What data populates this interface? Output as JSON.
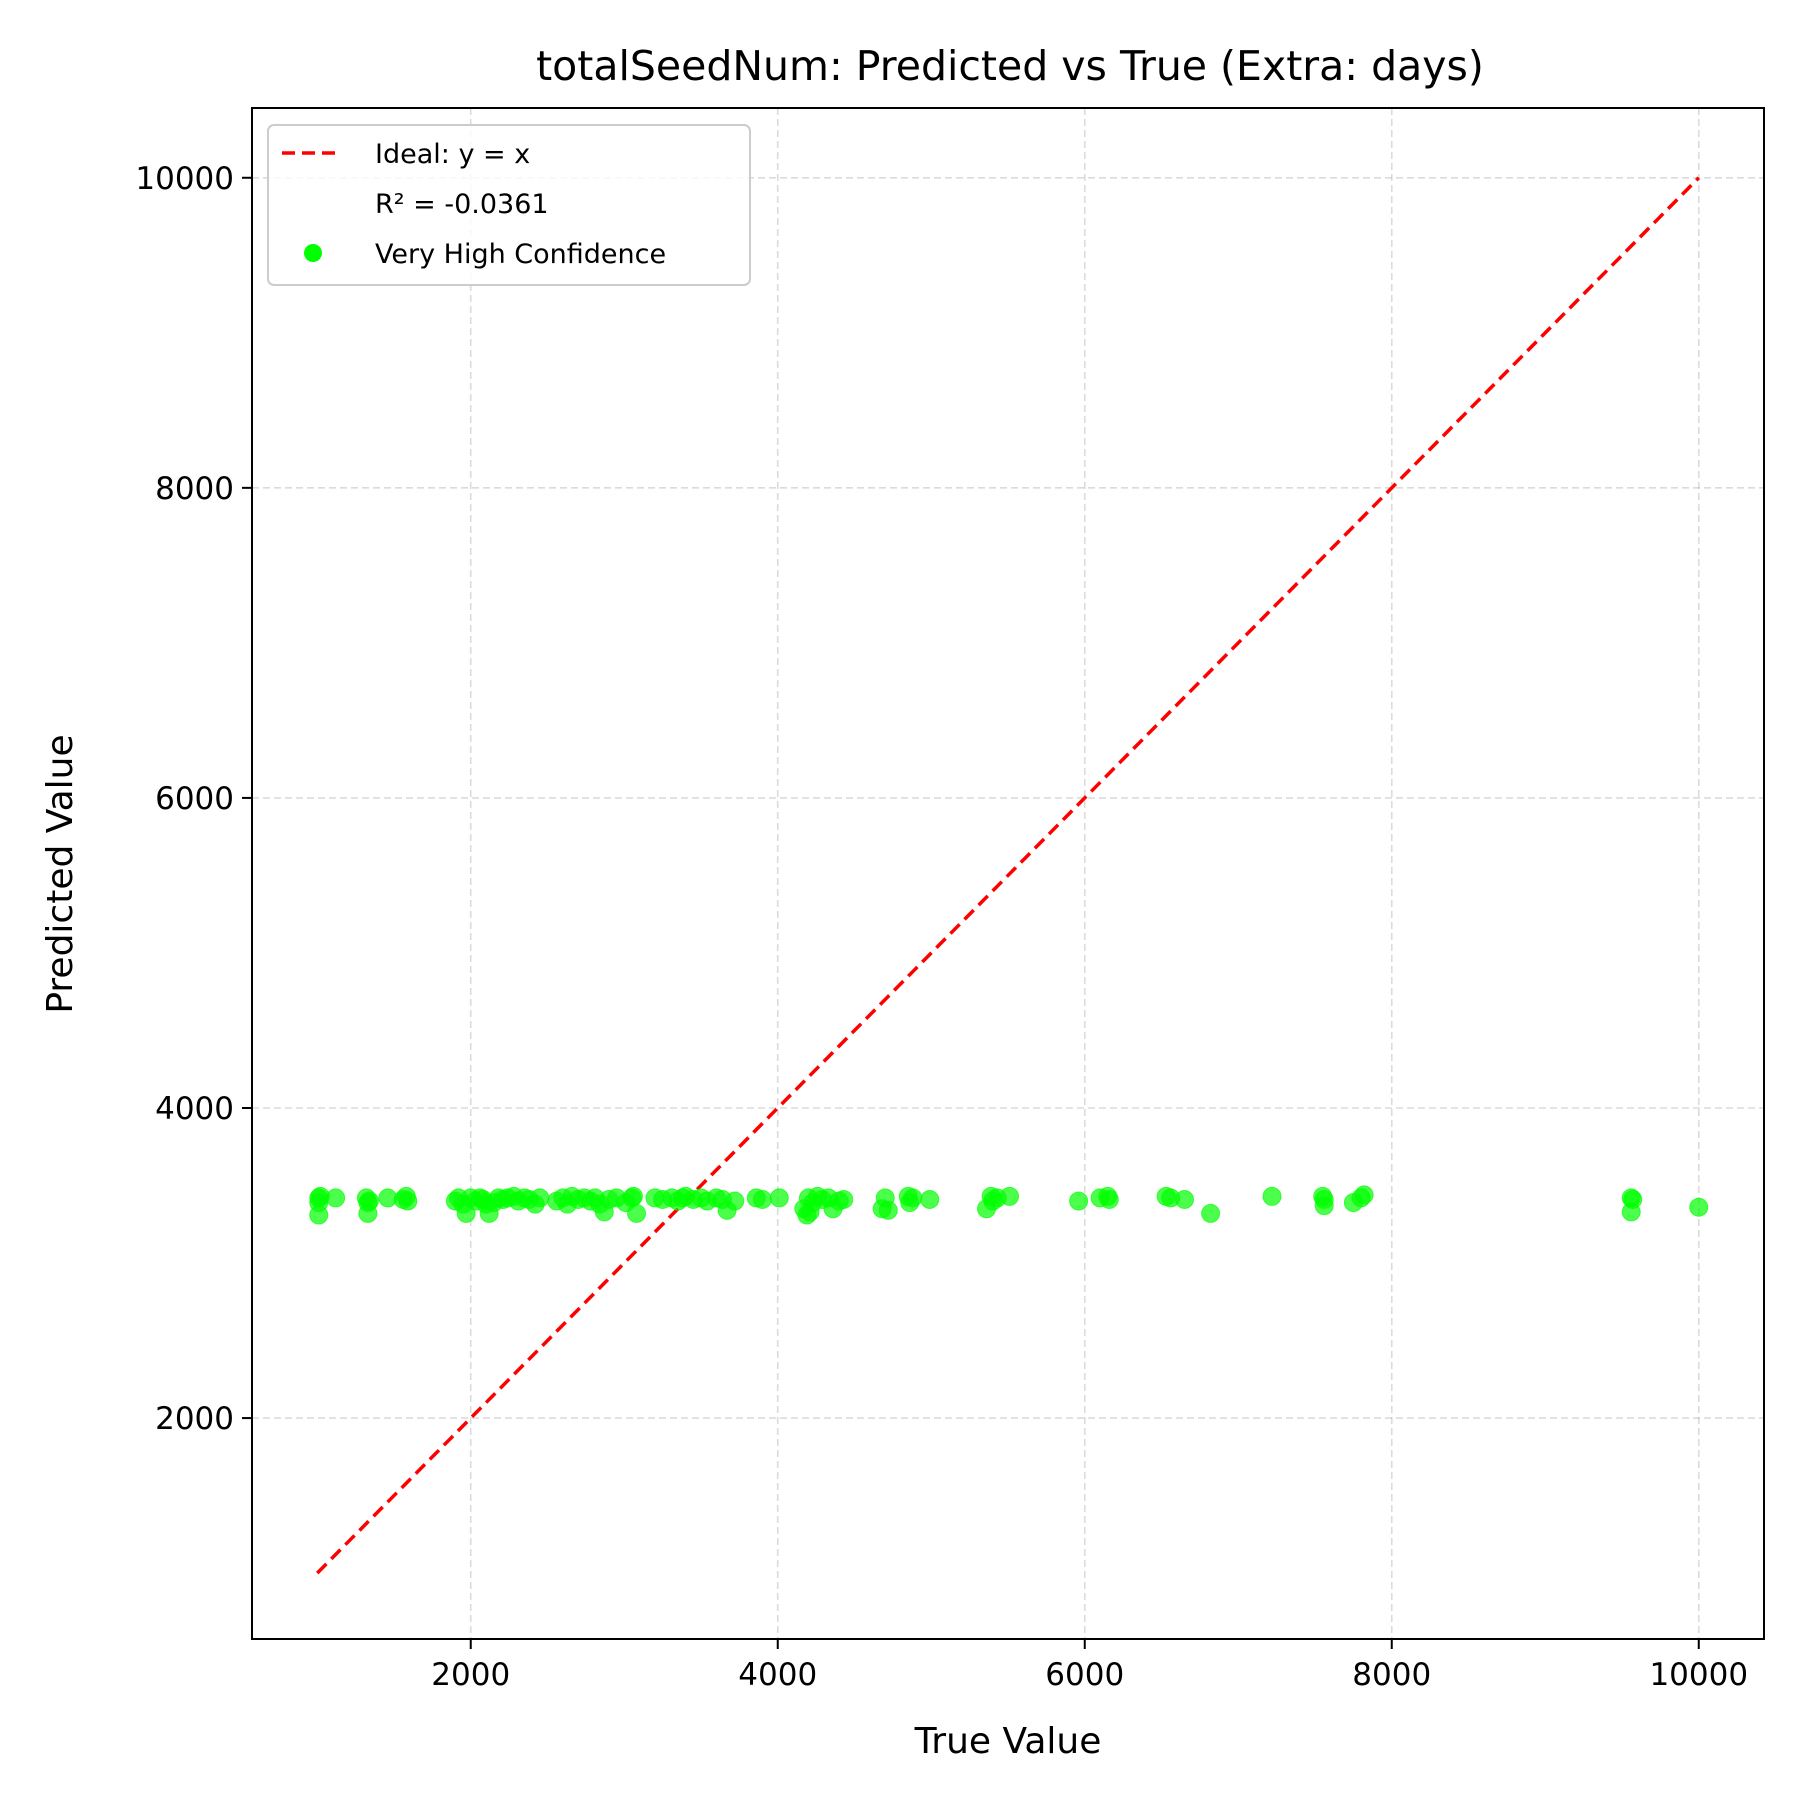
{
  "chart_data": {
    "type": "scatter",
    "title": "totalSeedNum: Predicted vs True (Extra: days)",
    "xlabel": "True Value",
    "ylabel": "Predicted Value",
    "xlim": [
      575,
      10425
    ],
    "ylim": [
      575,
      10450
    ],
    "xticks": [
      2000,
      4000,
      6000,
      8000,
      10000
    ],
    "yticks": [
      2000,
      4000,
      6000,
      8000,
      10000
    ],
    "xtick_labels": [
      "2000",
      "4000",
      "6000",
      "8000",
      "10000"
    ],
    "ytick_labels": [
      "2000",
      "4000",
      "6000",
      "8000",
      "10000"
    ],
    "grid": true,
    "legend_position": "top-left",
    "ideal_line": {
      "name": "Ideal: y = x",
      "x": [
        1000,
        10000
      ],
      "y": [
        1000,
        10000
      ],
      "color": "#ff0000",
      "style": "dashed"
    },
    "annotation": "R² = -0.0361",
    "series": [
      {
        "name": "Very High Confidence",
        "color": "#00ff00",
        "points": [
          [
            1010,
            3420
          ],
          [
            1010,
            3390
          ],
          [
            1010,
            3310
          ],
          [
            1020,
            3430
          ],
          [
            1120,
            3420
          ],
          [
            1320,
            3420
          ],
          [
            1330,
            3390
          ],
          [
            1330,
            3320
          ],
          [
            1340,
            3400
          ],
          [
            1460,
            3420
          ],
          [
            1560,
            3410
          ],
          [
            1580,
            3430
          ],
          [
            1590,
            3400
          ],
          [
            1900,
            3400
          ],
          [
            1920,
            3420
          ],
          [
            1950,
            3380
          ],
          [
            1970,
            3320
          ],
          [
            2000,
            3420
          ],
          [
            2030,
            3400
          ],
          [
            2060,
            3420
          ],
          [
            2080,
            3410
          ],
          [
            2100,
            3380
          ],
          [
            2120,
            3320
          ],
          [
            2150,
            3390
          ],
          [
            2180,
            3420
          ],
          [
            2210,
            3410
          ],
          [
            2240,
            3420
          ],
          [
            2280,
            3430
          ],
          [
            2310,
            3400
          ],
          [
            2350,
            3420
          ],
          [
            2380,
            3410
          ],
          [
            2420,
            3380
          ],
          [
            2450,
            3420
          ],
          [
            2560,
            3400
          ],
          [
            2600,
            3420
          ],
          [
            2630,
            3380
          ],
          [
            2660,
            3430
          ],
          [
            2700,
            3410
          ],
          [
            2740,
            3420
          ],
          [
            2780,
            3400
          ],
          [
            2810,
            3420
          ],
          [
            2840,
            3380
          ],
          [
            2870,
            3330
          ],
          [
            2900,
            3410
          ],
          [
            2950,
            3420
          ],
          [
            3010,
            3390
          ],
          [
            3050,
            3420
          ],
          [
            3060,
            3430
          ],
          [
            3080,
            3320
          ],
          [
            3200,
            3420
          ],
          [
            3250,
            3410
          ],
          [
            3310,
            3420
          ],
          [
            3350,
            3400
          ],
          [
            3380,
            3420
          ],
          [
            3400,
            3430
          ],
          [
            3450,
            3410
          ],
          [
            3500,
            3420
          ],
          [
            3540,
            3400
          ],
          [
            3600,
            3420
          ],
          [
            3640,
            3410
          ],
          [
            3670,
            3340
          ],
          [
            3720,
            3400
          ],
          [
            3860,
            3420
          ],
          [
            3900,
            3410
          ],
          [
            4010,
            3420
          ],
          [
            4170,
            3350
          ],
          [
            4190,
            3310
          ],
          [
            4200,
            3420
          ],
          [
            4210,
            3330
          ],
          [
            4230,
            3390
          ],
          [
            4260,
            3430
          ],
          [
            4290,
            3410
          ],
          [
            4330,
            3420
          ],
          [
            4360,
            3350
          ],
          [
            4400,
            3400
          ],
          [
            4430,
            3410
          ],
          [
            4680,
            3350
          ],
          [
            4700,
            3420
          ],
          [
            4720,
            3340
          ],
          [
            4850,
            3430
          ],
          [
            4860,
            3390
          ],
          [
            4880,
            3420
          ],
          [
            4990,
            3410
          ],
          [
            5360,
            3350
          ],
          [
            5390,
            3430
          ],
          [
            5400,
            3400
          ],
          [
            5430,
            3420
          ],
          [
            5510,
            3430
          ],
          [
            5960,
            3400
          ],
          [
            6100,
            3420
          ],
          [
            6150,
            3430
          ],
          [
            6160,
            3410
          ],
          [
            6530,
            3430
          ],
          [
            6560,
            3420
          ],
          [
            6650,
            3410
          ],
          [
            6820,
            3320
          ],
          [
            7220,
            3430
          ],
          [
            7550,
            3430
          ],
          [
            7560,
            3370
          ],
          [
            7560,
            3410
          ],
          [
            7750,
            3390
          ],
          [
            7800,
            3420
          ],
          [
            7820,
            3440
          ],
          [
            9560,
            3420
          ],
          [
            9560,
            3330
          ],
          [
            9570,
            3410
          ],
          [
            10000,
            3360
          ]
        ]
      }
    ]
  }
}
